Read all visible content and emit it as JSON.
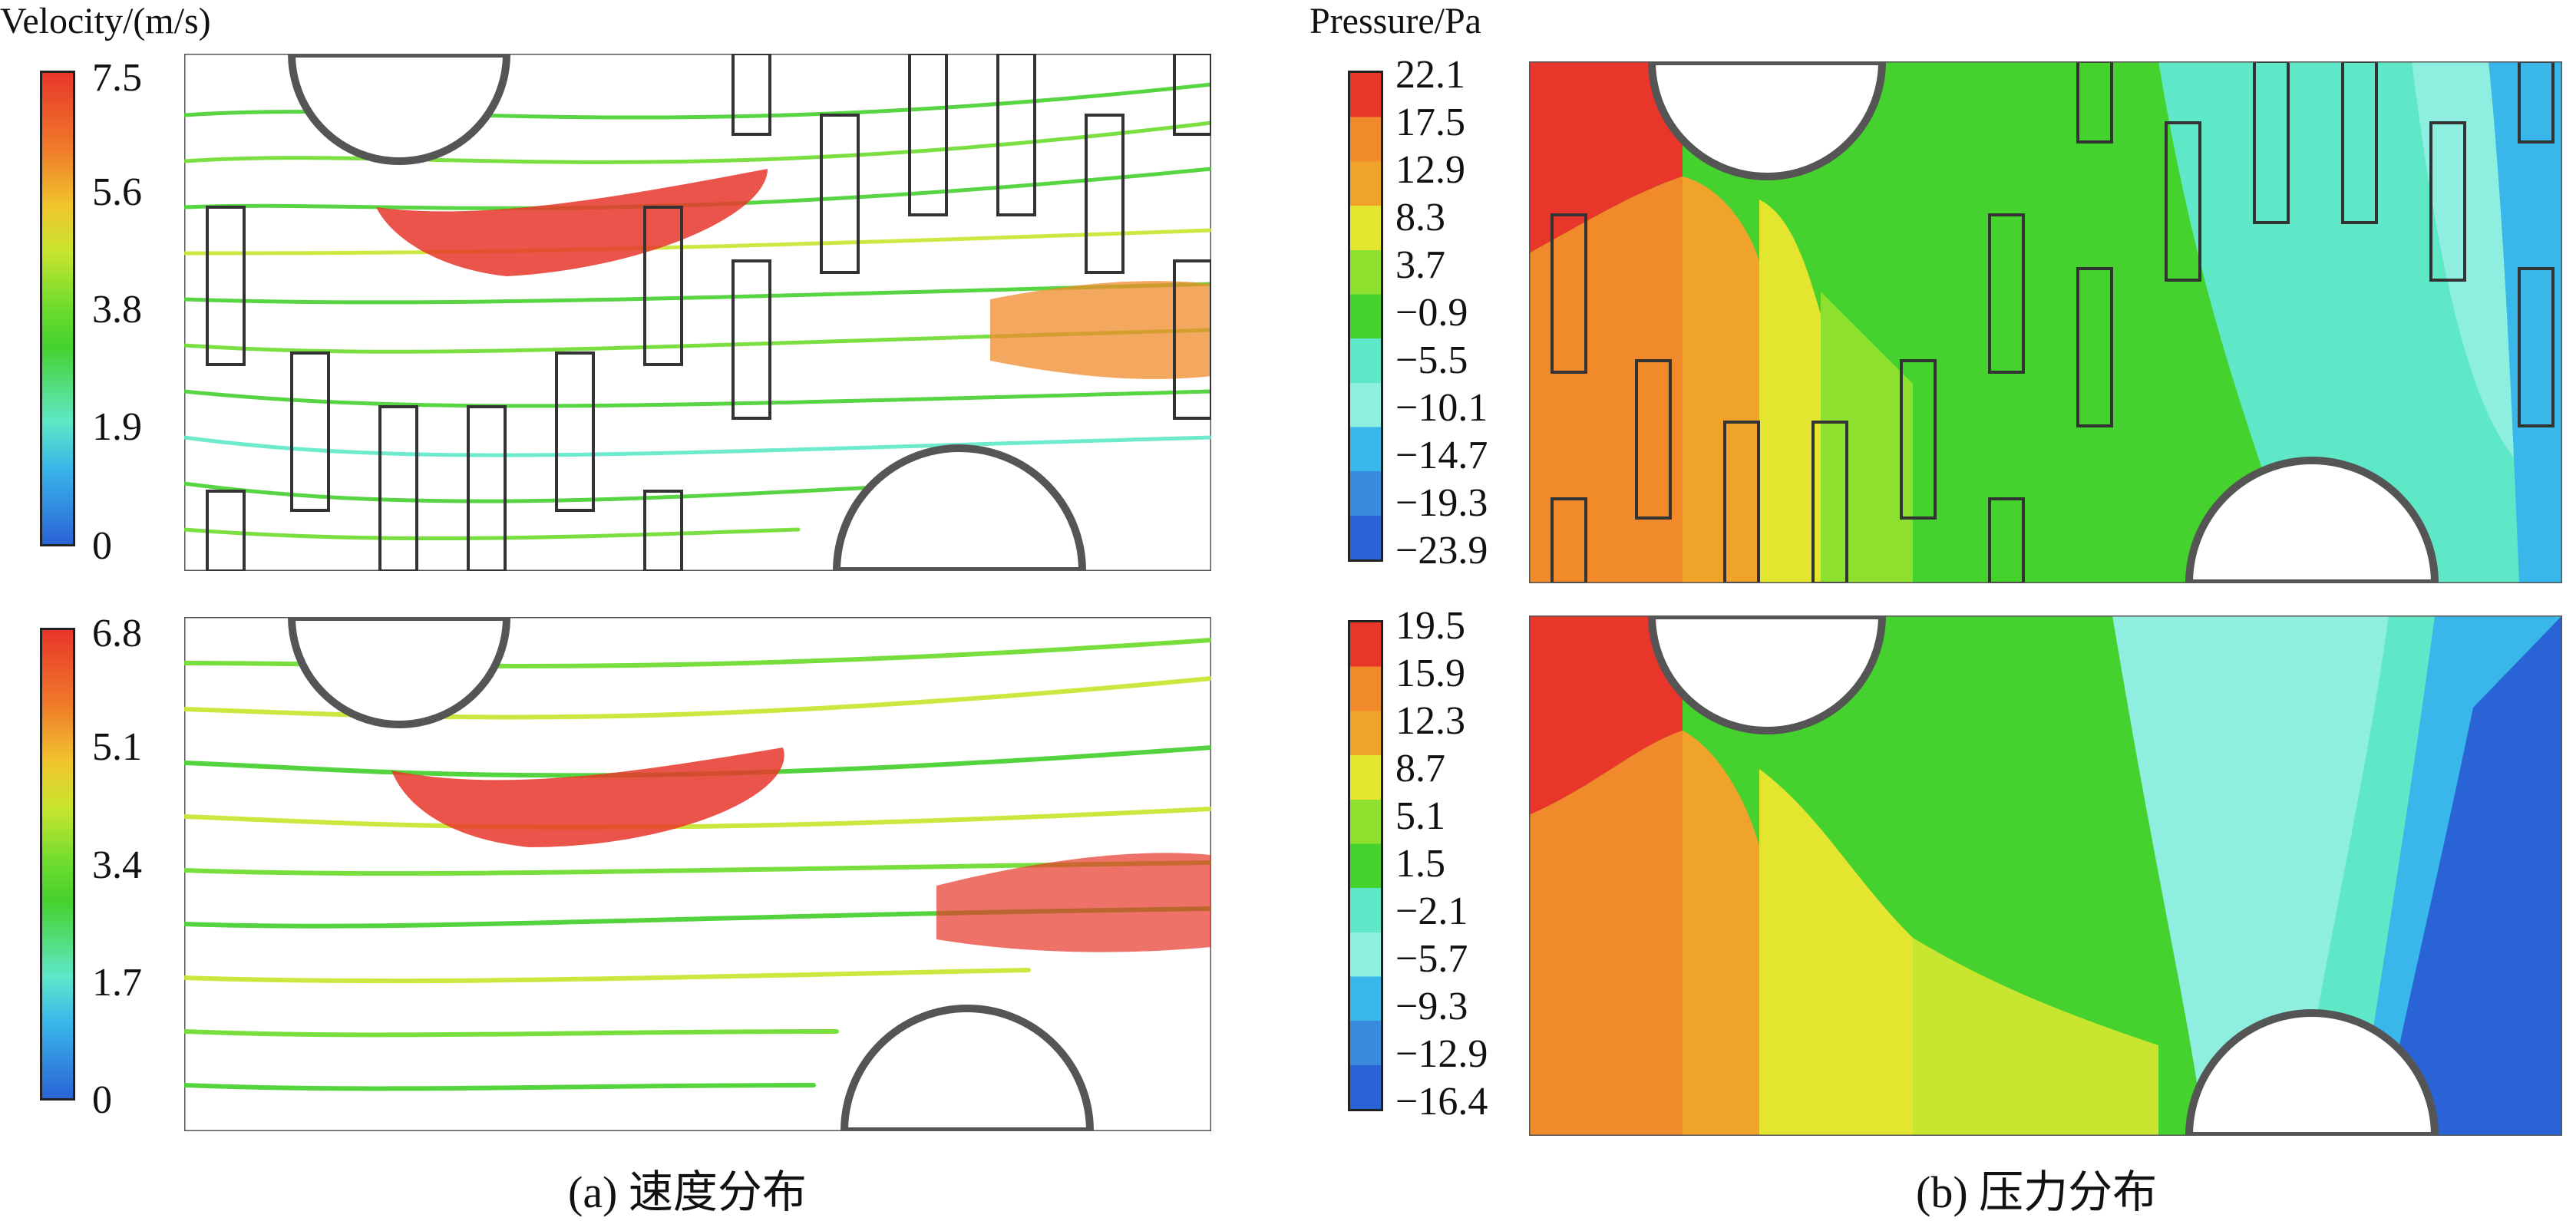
{
  "velocity": {
    "unit_label": "Velocity/(m/s)",
    "top": {
      "ticks": [
        "7.5",
        "5.6",
        "3.8",
        "1.9",
        "0"
      ]
    },
    "bottom": {
      "ticks": [
        "6.8",
        "5.1",
        "3.4",
        "1.7",
        "0"
      ]
    }
  },
  "pressure": {
    "unit_label": "Pressure/Pa",
    "top": {
      "ticks": [
        "22.1",
        "17.5",
        "12.9",
        "8.3",
        "3.7",
        "−0.9",
        "−5.5",
        "−10.1",
        "−14.7",
        "−19.3",
        "−23.9"
      ]
    },
    "bottom": {
      "ticks": [
        "19.5",
        "15.9",
        "12.3",
        "8.7",
        "5.1",
        "1.5",
        "−2.1",
        "−5.7",
        "−9.3",
        "−12.9",
        "−16.4"
      ]
    }
  },
  "captions": {
    "a": "(a) 速度分布",
    "b": "(b) 压力分布"
  },
  "colors": {
    "red": "#e8362a",
    "orange": "#f08a2a",
    "yellow": "#e3e52f",
    "green": "#45d12e",
    "cyan": "#5fe8c8",
    "lightblue": "#39b6ea",
    "blue": "#2a63d6"
  }
}
